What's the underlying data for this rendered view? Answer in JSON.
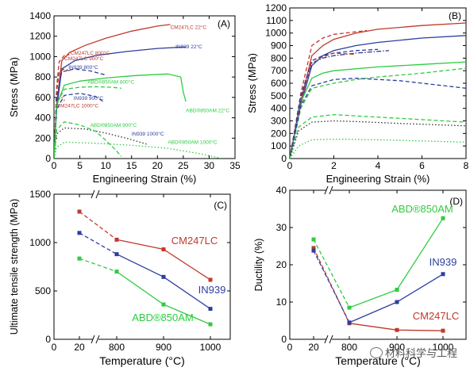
{
  "chart_data": [
    {
      "type": "line",
      "panel_label": "(A)",
      "xlabel": "Engineering Strain (%)",
      "ylabel": "Stress (MPa)",
      "xlim": [
        0,
        35
      ],
      "ylim": [
        0,
        1400
      ],
      "xticks": [
        "0",
        "5",
        "10",
        "15",
        "20",
        "25",
        "30",
        "35"
      ],
      "yticks": [
        "0",
        "200",
        "400",
        "600",
        "800",
        "1000",
        "1200",
        "1400"
      ],
      "series": [
        {
          "label": "CM247LC 22°C",
          "color": "#c0392b",
          "dash": "solid",
          "x": [
            0,
            0.5,
            1.5,
            3,
            6,
            10,
            15,
            20,
            22.5
          ],
          "y": [
            0,
            520,
            960,
            1040,
            1110,
            1180,
            1250,
            1300,
            1315
          ]
        },
        {
          "label": "IN939 22°C",
          "color": "#2c3e9e",
          "dash": "solid",
          "x": [
            0,
            0.5,
            1.5,
            4,
            8,
            14,
            20,
            25.5
          ],
          "y": [
            0,
            480,
            880,
            960,
            1010,
            1050,
            1080,
            1095
          ]
        },
        {
          "label": "ABD®850AM 22°C",
          "color": "#2ecc40",
          "dash": "solid",
          "x": [
            0,
            0.5,
            2,
            5,
            10,
            16,
            22,
            24.5,
            25,
            25.5
          ],
          "y": [
            0,
            520,
            720,
            760,
            790,
            815,
            830,
            800,
            650,
            560
          ]
        },
        {
          "label": "CM247LC 800°C",
          "color": "#c0392b",
          "dash": "dash",
          "x": [
            0,
            0.5,
            1,
            2,
            3
          ],
          "y": [
            0,
            700,
            950,
            1010,
            1020
          ]
        },
        {
          "label": "CM247LC 900°C",
          "color": "#c0392b",
          "dash": "dash",
          "x": [
            0,
            0.5,
            1,
            2,
            3
          ],
          "y": [
            0,
            650,
            850,
            880,
            860
          ]
        },
        {
          "label": "CM247LC 1000°C",
          "color": "#c0392b",
          "dash": "dot",
          "x": [
            0,
            0.4,
            0.8,
            1.5,
            2.2
          ],
          "y": [
            0,
            450,
            580,
            600,
            560
          ]
        },
        {
          "label": "IN939 800°C",
          "color": "#2c3e9e",
          "dash": "dash",
          "x": [
            0,
            0.5,
            1.5,
            4,
            7,
            10
          ],
          "y": [
            0,
            600,
            850,
            880,
            860,
            820
          ]
        },
        {
          "label": "IN939 900°C",
          "color": "#2c3e9e",
          "dash": "dash",
          "x": [
            0,
            0.5,
            2,
            5,
            8,
            9.5
          ],
          "y": [
            0,
            480,
            620,
            640,
            610,
            560
          ]
        },
        {
          "label": "IN939 1000°C",
          "color": "#333333",
          "dash": "dot",
          "x": [
            0,
            0.5,
            2,
            6,
            10,
            14,
            18
          ],
          "y": [
            0,
            240,
            300,
            290,
            250,
            200,
            140
          ]
        },
        {
          "label": "ABD®850AM 800°C",
          "color": "#2ecc40",
          "dash": "dash",
          "x": [
            0,
            0.5,
            2,
            5,
            8,
            11,
            13
          ],
          "y": [
            0,
            540,
            680,
            700,
            705,
            700,
            690
          ]
        },
        {
          "label": "ABD®850AM 900°C",
          "color": "#2ecc40",
          "dash": "dash",
          "x": [
            0,
            0.5,
            2,
            5,
            8,
            10,
            12,
            13
          ],
          "y": [
            0,
            280,
            360,
            330,
            270,
            180,
            80,
            20
          ]
        },
        {
          "label": "ABD®850AM 1000°C",
          "color": "#2ecc40",
          "dash": "dot",
          "x": [
            0,
            0.5,
            2,
            8,
            15,
            22,
            28,
            32.5
          ],
          "y": [
            0,
            110,
            160,
            150,
            130,
            100,
            50,
            0
          ]
        }
      ],
      "annotations": [
        {
          "text": "CM247LC 22°C",
          "x": 22.5,
          "y": 1270,
          "color": "#c0392b"
        },
        {
          "text": "IN939 22°C",
          "x": 23.5,
          "y": 1080,
          "color": "#2c3e9e"
        },
        {
          "text": "CM247LC 800°C",
          "x": 3.2,
          "y": 1020,
          "color": "#c0392b"
        },
        {
          "text": "CM247LC 900°C",
          "x": 2,
          "y": 965,
          "color": "#c0392b"
        },
        {
          "text": "IN939 800°C",
          "x": 2.8,
          "y": 880,
          "color": "#2c3e9e"
        },
        {
          "text": "ABD®850AM 800°C",
          "x": 6.5,
          "y": 735,
          "color": "#2ecc40"
        },
        {
          "text": "IN939 900°C",
          "x": 3.8,
          "y": 575,
          "color": "#2c3e9e"
        },
        {
          "text": "CM247LC 1000°C",
          "x": 0.5,
          "y": 500,
          "color": "#c0392b"
        },
        {
          "text": "ABD®850AM 22°C",
          "x": 25.5,
          "y": 455,
          "color": "#2ecc40"
        },
        {
          "text": "ABD®850AM 900°C",
          "x": 7,
          "y": 310,
          "color": "#2ecc40"
        },
        {
          "text": "IN939 1000°C",
          "x": 15,
          "y": 225,
          "color": "#2c3e9e"
        },
        {
          "text": "ABD®850AM 1000°C",
          "x": 22,
          "y": 145,
          "color": "#2ecc40"
        }
      ]
    },
    {
      "type": "line",
      "panel_label": "(B)",
      "xlabel": "Engineering Strain (%)",
      "ylabel": "Stress (MPa)",
      "xlim": [
        0,
        8
      ],
      "ylim": [
        0,
        1200
      ],
      "xticks": [
        "0",
        "2",
        "4",
        "6",
        "8"
      ],
      "yticks": [
        "0",
        "100",
        "200",
        "300",
        "400",
        "500",
        "600",
        "700",
        "800",
        "900",
        "1000",
        "1100",
        "1200"
      ],
      "series": [
        {
          "label": "CM247LC 22°C",
          "color": "#c0392b",
          "dash": "solid",
          "x": [
            0,
            0.5,
            1,
            1.5,
            2,
            3,
            4,
            6,
            8
          ],
          "y": [
            0,
            450,
            820,
            900,
            950,
            1000,
            1030,
            1060,
            1080
          ]
        },
        {
          "label": "IN939 22°C",
          "color": "#2c3e9e",
          "dash": "solid",
          "x": [
            0,
            0.5,
            1,
            1.5,
            2,
            3,
            4,
            6,
            8
          ],
          "y": [
            0,
            430,
            740,
            820,
            860,
            900,
            925,
            960,
            980
          ]
        },
        {
          "label": "ABD®850AM 22°C",
          "color": "#2ecc40",
          "dash": "solid",
          "x": [
            0,
            0.5,
            1,
            1.5,
            2,
            4,
            6,
            8
          ],
          "y": [
            0,
            450,
            640,
            680,
            700,
            730,
            750,
            770
          ]
        },
        {
          "label": "CM247LC 800°C",
          "color": "#c0392b",
          "dash": "dash",
          "x": [
            0,
            0.5,
            1,
            1.5,
            2,
            3.5
          ],
          "y": [
            0,
            520,
            900,
            960,
            990,
            1020
          ]
        },
        {
          "label": "IN939 800°C",
          "color": "#2c3e9e",
          "dash": "dash",
          "x": [
            0,
            0.5,
            1,
            1.5,
            2,
            3,
            4
          ],
          "y": [
            0,
            500,
            780,
            820,
            840,
            860,
            870
          ]
        },
        {
          "label": "IN939 800°C (dash-dot)",
          "color": "#2c3e9e",
          "dash": "dashdot",
          "x": [
            0,
            0.5,
            1,
            1.5,
            2,
            3,
            4.5
          ],
          "y": [
            0,
            480,
            760,
            800,
            820,
            840,
            860
          ]
        },
        {
          "label": "ABD®850AM 800°C",
          "color": "#2ecc40",
          "dash": "dash",
          "x": [
            0,
            0.5,
            1,
            2,
            3,
            4,
            6,
            8
          ],
          "y": [
            0,
            400,
            560,
            600,
            630,
            650,
            680,
            720
          ]
        },
        {
          "label": "CM247LC 900°C",
          "color": "#c0392b",
          "dash": "dash",
          "x": [
            0,
            0.5,
            1,
            2,
            3
          ],
          "y": [
            0,
            450,
            780,
            840,
            830
          ]
        },
        {
          "label": "IN939 900°C",
          "color": "#2c3e9e",
          "dash": "dash",
          "x": [
            0,
            0.5,
            1,
            2,
            3,
            5,
            8
          ],
          "y": [
            0,
            420,
            580,
            630,
            640,
            620,
            560
          ]
        },
        {
          "label": "ABD®850AM 900°C",
          "color": "#2ecc40",
          "dash": "dash",
          "x": [
            0,
            0.4,
            1,
            2,
            3,
            5,
            8
          ],
          "y": [
            0,
            250,
            330,
            350,
            340,
            320,
            290
          ]
        },
        {
          "label": "IN939 1000°C",
          "color": "#333333",
          "dash": "dot",
          "x": [
            0,
            0.4,
            1,
            2,
            3,
            5,
            8
          ],
          "y": [
            0,
            220,
            290,
            300,
            295,
            280,
            260
          ]
        },
        {
          "label": "ABD®850AM 1000°C",
          "color": "#2ecc40",
          "dash": "dot",
          "x": [
            0,
            0.4,
            1,
            2,
            4,
            6,
            8
          ],
          "y": [
            0,
            100,
            150,
            155,
            150,
            140,
            130
          ]
        }
      ],
      "annotations": []
    },
    {
      "type": "line",
      "panel_label": "(C)",
      "xlabel": "Temperature (°C)",
      "ylabel": "Ultimate tensile strength (MPa)",
      "categories": [
        "20",
        "800",
        "900",
        "1000"
      ],
      "ylim": [
        0,
        1500
      ],
      "yticks": [
        "0",
        "500",
        "1000",
        "1500"
      ],
      "series": [
        {
          "name": "CM247LC",
          "color": "#c0392b",
          "values": [
            1320,
            1030,
            930,
            615
          ]
        },
        {
          "name": "IN939",
          "color": "#2c3e9e",
          "values": [
            1100,
            880,
            645,
            315
          ]
        },
        {
          "name": "ABD®850AM",
          "color": "#2ecc40",
          "values": [
            835,
            700,
            360,
            155
          ]
        }
      ],
      "note": "Segment 20→800 drawn dashed across an axis break; 800→1000 drawn solid with markers."
    },
    {
      "type": "line",
      "panel_label": "(D)",
      "xlabel": "Temperature (°C)",
      "ylabel": "Ductility (%)",
      "categories": [
        "20",
        "800",
        "900",
        "1000"
      ],
      "ylim": [
        0,
        40
      ],
      "yticks": [
        "0",
        "10",
        "20",
        "30",
        "40"
      ],
      "series": [
        {
          "name": "CM247LC",
          "color": "#c0392b",
          "values": [
            24.5,
            4.3,
            2.5,
            2.3
          ]
        },
        {
          "name": "IN939",
          "color": "#2c3e9e",
          "values": [
            23.8,
            4.5,
            10,
            17.5
          ]
        },
        {
          "name": "ABD®850AM",
          "color": "#2ecc40",
          "values": [
            26.8,
            8.5,
            13.3,
            32.5
          ]
        }
      ],
      "note": "Segment 20→800 drawn dashed across an axis break; 800→1000 drawn solid with markers."
    }
  ],
  "watermark": {
    "text": "材料科学与工程"
  }
}
